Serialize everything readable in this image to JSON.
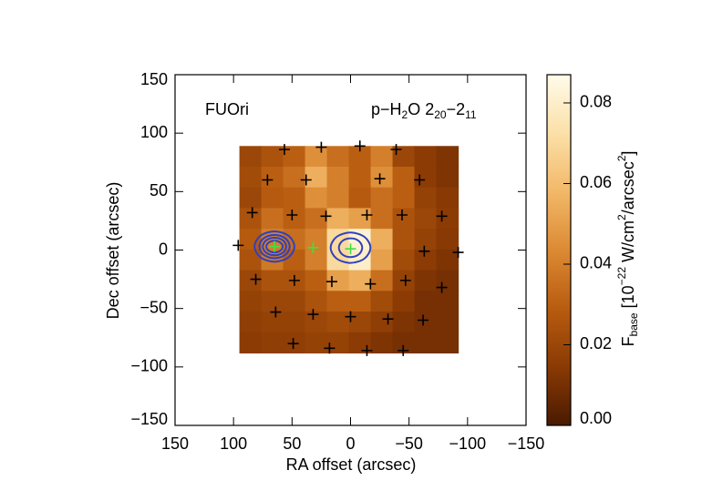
{
  "chart_data": {
    "type": "heatmap",
    "annotation_left": "FUOri",
    "annotation_right": [
      "p−H",
      "2",
      "O 2",
      "20",
      "−2",
      "11"
    ],
    "xlabel": "RA offset (arcsec)",
    "ylabel": "Dec offset (arcsec)",
    "colorbar_label": [
      "F",
      "base",
      " [10",
      "−22",
      " W/cm",
      "2",
      "/arcsec",
      "2",
      "]"
    ],
    "xlim": [
      150,
      -150
    ],
    "ylim": [
      -150,
      150
    ],
    "xticks": [
      150,
      100,
      50,
      0,
      {
        "value": -50,
        "label": "−50"
      },
      {
        "value": -100,
        "label": "−100"
      },
      {
        "value": -150,
        "label": "−150"
      }
    ],
    "yticks": [
      {
        "value": -150,
        "label": "−150"
      },
      {
        "value": -100,
        "label": "−100"
      },
      {
        "value": -50,
        "label": "−50"
      },
      0,
      50,
      100,
      150
    ],
    "image": {
      "xlim": [
        95,
        -92
      ],
      "ylim": [
        89,
        -88
      ],
      "z": [
        [
          0.02,
          0.025,
          0.03,
          0.045,
          0.035,
          0.03,
          0.04,
          0.02,
          0.015,
          0.012
        ],
        [
          0.022,
          0.03,
          0.035,
          0.055,
          0.04,
          0.03,
          0.045,
          0.03,
          0.015,
          0.012
        ],
        [
          0.02,
          0.028,
          0.03,
          0.045,
          0.04,
          0.028,
          0.035,
          0.03,
          0.018,
          0.014
        ],
        [
          0.025,
          0.035,
          0.03,
          0.035,
          0.055,
          0.05,
          0.035,
          0.025,
          0.02,
          0.015
        ],
        [
          0.028,
          0.04,
          0.035,
          0.04,
          0.07,
          0.082,
          0.055,
          0.025,
          0.018,
          0.014
        ],
        [
          0.025,
          0.038,
          0.03,
          0.04,
          0.07,
          0.08,
          0.05,
          0.022,
          0.015,
          0.012
        ],
        [
          0.02,
          0.025,
          0.025,
          0.03,
          0.05,
          0.055,
          0.035,
          0.018,
          0.012,
          0.01
        ],
        [
          0.018,
          0.02,
          0.02,
          0.025,
          0.03,
          0.03,
          0.022,
          0.015,
          0.01,
          0.01
        ],
        [
          0.016,
          0.018,
          0.018,
          0.02,
          0.022,
          0.02,
          0.016,
          0.012,
          0.01,
          0.01
        ],
        [
          0.015,
          0.016,
          0.016,
          0.018,
          0.018,
          0.015,
          0.012,
          0.01,
          0.01,
          0.01
        ]
      ]
    },
    "colormap": [
      "#4a1a00",
      "#8a3a04",
      "#b85c10",
      "#dc8a34",
      "#f2b868",
      "#fbe0a8",
      "#fffbea"
    ],
    "clim": [
      0,
      0.087
    ],
    "cticks": [
      {
        "value": 0,
        "label": "0.00"
      },
      0.02,
      0.04,
      0.06,
      0.08
    ],
    "crosses": {
      "color": "#000000",
      "x": [
        56.5,
        25,
        -8,
        -39,
        71,
        38,
        -25,
        -59,
        84,
        50,
        21,
        -14,
        -44,
        -78,
        96,
        -92,
        -63,
        81,
        48,
        16,
        -17,
        -47,
        -78,
        64,
        32,
        0,
        -32,
        -62,
        49,
        18,
        -14,
        -45
      ],
      "y": [
        86,
        88,
        89,
        86,
        60,
        60,
        61,
        60,
        32,
        30,
        29,
        30,
        30,
        29,
        4,
        -2,
        -1,
        -25,
        -26,
        -27,
        -29,
        -26,
        -32,
        -53,
        -55,
        -57,
        -59,
        -60,
        -80,
        -84,
        -86,
        -86
      ]
    },
    "sources": {
      "color": "#40e040",
      "x": [
        65,
        32,
        0
      ],
      "y": [
        3,
        2,
        1
      ]
    },
    "contour_color": "#3040c0",
    "contours": [
      {
        "x": [
          82,
          77,
          65,
          53,
          48,
          53,
          65,
          77
        ],
        "y": [
          3,
          12.2,
          16,
          12.2,
          3,
          -6.2,
          -10,
          -6.2
        ]
      },
      {
        "x": [
          78,
          74.2,
          65,
          55.8,
          52,
          55.8,
          65,
          74.2
        ],
        "y": [
          3,
          10.1,
          13,
          10.1,
          3,
          -4.1,
          -7,
          -4.1
        ]
      },
      {
        "x": [
          75,
          72.1,
          65,
          57.9,
          55,
          57.9,
          65,
          72.1
        ],
        "y": [
          3,
          8.3,
          10.5,
          8.3,
          3,
          -2.3,
          -4.5,
          -2.3
        ]
      },
      {
        "x": [
          72,
          69.9,
          65,
          60.1,
          58,
          60.1,
          65,
          69.9
        ],
        "y": [
          3,
          6.5,
          8,
          6.5,
          3,
          -0.5,
          -2,
          -0.5
        ]
      },
      {
        "x": [
          17,
          12,
          0,
          -12,
          -17,
          -12,
          0,
          12
        ],
        "y": [
          2,
          11.2,
          15,
          11.2,
          2,
          -7.2,
          -11,
          -7.2
        ]
      },
      {
        "x": [
          10,
          7.1,
          0,
          -7.1,
          -10,
          -7.1,
          0,
          7.1
        ],
        "y": [
          2,
          7.7,
          10,
          7.7,
          2,
          -3.7,
          -6,
          -3.7
        ]
      }
    ]
  }
}
